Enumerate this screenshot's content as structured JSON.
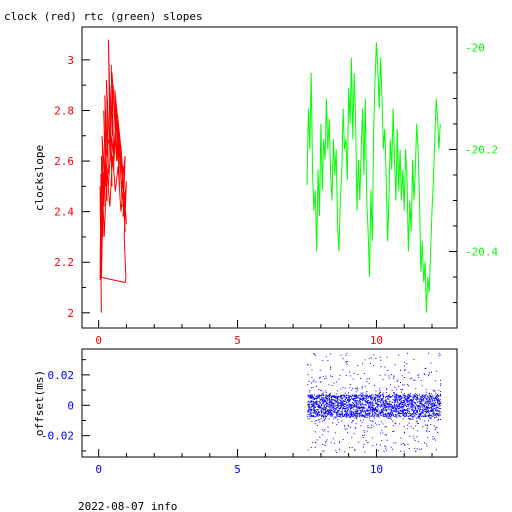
{
  "title": "clock (red) rtc (green) slopes",
  "footer": "2022-08-07 info",
  "colors": {
    "clock": "#ff0000",
    "rtc": "#00ff00",
    "offset": "#0000ff",
    "axis": "#000000"
  },
  "chart_data": [
    {
      "type": "line",
      "title": "clock (red) rtc (green) slopes",
      "ylabel": "clockslope",
      "xlim": [
        -0.6,
        12.9
      ],
      "ylim": [
        1.94,
        3.13
      ],
      "y2lim": [
        -20.55,
        -19.96
      ],
      "xticks": [
        0,
        5,
        10
      ],
      "yticks": [
        2,
        2.2,
        2.4,
        2.6,
        2.8,
        3
      ],
      "y2ticks": [
        -20,
        -20.2,
        -20.4
      ],
      "grid": false,
      "series": [
        {
          "axis": "left",
          "color": "#ff0000",
          "x": [
            0.05,
            0.07,
            0.1,
            0.05,
            0.12,
            0.08,
            0.15,
            0.1,
            0.2,
            0.12,
            0.25,
            0.18,
            0.3,
            0.22,
            0.35,
            0.28,
            0.42,
            0.35,
            0.48,
            0.4,
            0.5,
            0.45,
            0.55,
            0.48,
            0.6,
            0.52,
            0.65,
            0.58,
            0.7,
            0.62,
            0.75,
            0.68,
            0.8,
            0.72,
            0.85,
            0.78,
            0.9,
            0.82,
            0.95,
            0.88,
            1.0,
            0.92,
            0.98,
            0.95,
            0.1,
            0.15,
            0.2,
            0.3,
            0.4,
            0.5,
            0.6,
            0.7,
            0.8,
            0.9,
            0.95,
            0.9,
            0.85,
            0.75,
            0.65,
            0.55,
            0.45,
            0.35,
            0.25,
            0.2,
            0.15,
            0.1,
            0.05,
            0.1,
            0.15,
            0.2,
            0.3,
            0.4,
            0.5,
            0.6,
            0.7,
            0.8,
            0.9,
            1.0
          ],
          "y": [
            2.13,
            2.36,
            2.0,
            2.48,
            2.22,
            2.55,
            2.3,
            2.62,
            2.42,
            2.7,
            2.5,
            2.8,
            2.44,
            2.86,
            2.55,
            2.92,
            2.6,
            3.08,
            2.5,
            2.9,
            2.7,
            2.98,
            2.55,
            2.95,
            2.72,
            2.9,
            2.6,
            2.88,
            2.75,
            2.82,
            2.5,
            2.78,
            2.65,
            2.7,
            2.42,
            2.62,
            2.56,
            2.48,
            2.62,
            2.38,
            2.52,
            2.3,
            2.14,
            2.12,
            2.14,
            2.4,
            2.55,
            2.65,
            2.7,
            2.58,
            2.72,
            2.6,
            2.66,
            2.5,
            2.32,
            2.42,
            2.55,
            2.68,
            2.76,
            2.6,
            2.7,
            2.5,
            2.62,
            2.44,
            2.55,
            2.3,
            2.5,
            2.35,
            2.46,
            2.3,
            2.56,
            2.42,
            2.62,
            2.48,
            2.58,
            2.4,
            2.5,
            2.35
          ]
        },
        {
          "axis": "right",
          "color": "#00ff00",
          "x": [
            7.5,
            7.55,
            7.6,
            7.65,
            7.7,
            7.75,
            7.8,
            7.85,
            7.9,
            7.95,
            8.0,
            8.05,
            8.1,
            8.15,
            8.2,
            8.25,
            8.3,
            8.35,
            8.4,
            8.45,
            8.5,
            8.55,
            8.6,
            8.65,
            8.7,
            8.75,
            8.8,
            8.85,
            8.9,
            8.95,
            9.0,
            9.05,
            9.1,
            9.15,
            9.2,
            9.25,
            9.3,
            9.35,
            9.4,
            9.45,
            9.5,
            9.55,
            9.6,
            9.65,
            9.7,
            9.75,
            9.8,
            9.85,
            9.9,
            9.95,
            10.0,
            10.05,
            10.1,
            10.15,
            10.2,
            10.25,
            10.3,
            10.35,
            10.4,
            10.45,
            10.5,
            10.55,
            10.6,
            10.65,
            10.7,
            10.75,
            10.8,
            10.85,
            10.9,
            10.95,
            11.0,
            11.05,
            11.1,
            11.15,
            11.2,
            11.25,
            11.3,
            11.35,
            11.4,
            11.45,
            11.5,
            11.55,
            11.6,
            11.65,
            11.7,
            11.75,
            11.8,
            11.85,
            11.9,
            11.95,
            12.0,
            12.05,
            12.1,
            12.15,
            12.2,
            12.25,
            12.3
          ],
          "y": [
            -20.27,
            -20.12,
            -20.2,
            -20.05,
            -20.25,
            -20.32,
            -20.28,
            -20.4,
            -20.24,
            -20.33,
            -20.15,
            -20.28,
            -20.18,
            -20.22,
            -20.1,
            -20.2,
            -20.14,
            -20.25,
            -20.3,
            -20.18,
            -20.25,
            -20.2,
            -20.35,
            -20.4,
            -20.3,
            -20.25,
            -20.12,
            -20.2,
            -20.18,
            -20.26,
            -20.08,
            -20.15,
            -20.02,
            -20.18,
            -20.05,
            -20.14,
            -20.32,
            -20.22,
            -20.3,
            -20.2,
            -20.12,
            -20.25,
            -20.1,
            -20.3,
            -20.36,
            -20.45,
            -20.28,
            -20.38,
            -20.16,
            -20.06,
            -19.99,
            -20.04,
            -20.12,
            -20.02,
            -20.1,
            -20.2,
            -20.16,
            -20.26,
            -20.38,
            -20.3,
            -20.18,
            -20.24,
            -20.12,
            -20.22,
            -20.3,
            -20.16,
            -20.28,
            -20.2,
            -20.3,
            -20.24,
            -20.32,
            -20.2,
            -20.26,
            -20.4,
            -20.3,
            -20.36,
            -20.22,
            -20.3,
            -20.24,
            -20.15,
            -20.2,
            -20.3,
            -20.44,
            -20.38,
            -20.46,
            -20.42,
            -20.52,
            -20.45,
            -20.48,
            -20.4,
            -20.32,
            -20.26,
            -20.18,
            -20.1,
            -20.14,
            -20.2,
            -20.15
          ]
        }
      ]
    },
    {
      "type": "scatter",
      "ylabel": "offset(ms)",
      "xlim": [
        -0.6,
        12.9
      ],
      "ylim": [
        -0.034,
        0.037
      ],
      "xticks": [
        0,
        5,
        10
      ],
      "yticks": [
        0.02,
        0,
        -0.02
      ],
      "grid": false,
      "series": [
        {
          "color": "#0000ff",
          "x_range": [
            7.5,
            12.3
          ],
          "y_center": 0,
          "y_band": [
            -0.007,
            0.007
          ],
          "y_extent": [
            -0.031,
            0.035
          ]
        }
      ]
    }
  ]
}
